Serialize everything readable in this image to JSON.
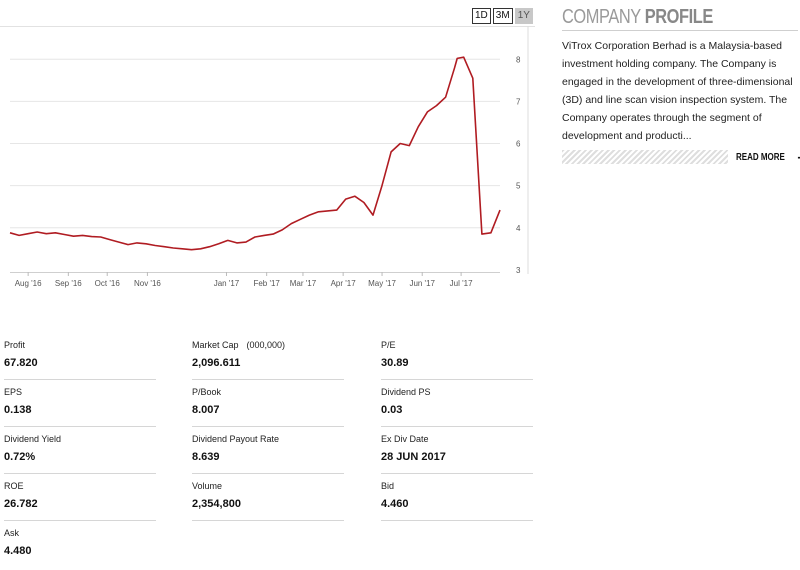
{
  "range_buttons": [
    {
      "label": "1D",
      "active": false
    },
    {
      "label": "3M",
      "active": false
    },
    {
      "label": "1Y",
      "active": true
    }
  ],
  "chart_data": {
    "type": "line",
    "x_tick_labels": [
      "Aug '16",
      "Sep '16",
      "Oct '16",
      "Nov '16",
      "Jan '17",
      "Feb '17",
      "Mar '17",
      "Apr '17",
      "May '17",
      "Jun '17",
      "Jul '17"
    ],
    "x_ticks": [
      "2016-08-01",
      "2016-09-01",
      "2016-10-01",
      "2016-11-01",
      "2017-01-01",
      "2017-02-01",
      "2017-03-01",
      "2017-04-01",
      "2017-05-01",
      "2017-06-01",
      "2017-07-01"
    ],
    "y_ticks": [
      3,
      4,
      5,
      6,
      7,
      8
    ],
    "ylim": [
      2.95,
      8.6
    ],
    "xlim": [
      "2016-07-18",
      "2017-07-31"
    ],
    "grid": true,
    "line_color": "#b01c22",
    "series": [
      {
        "x": [
          "2016-07-18",
          "2016-07-25",
          "2016-08-01",
          "2016-08-08",
          "2016-08-15",
          "2016-08-22",
          "2016-08-29",
          "2016-09-05",
          "2016-09-12",
          "2016-09-19",
          "2016-09-26",
          "2016-10-03",
          "2016-10-10",
          "2016-10-17",
          "2016-10-24",
          "2016-10-31",
          "2016-11-07",
          "2016-11-14",
          "2016-11-21",
          "2016-11-28",
          "2016-12-05",
          "2016-12-12",
          "2016-12-19",
          "2016-12-26",
          "2017-01-02",
          "2017-01-09",
          "2017-01-16",
          "2017-01-23",
          "2017-01-30",
          "2017-02-06",
          "2017-02-13",
          "2017-02-20",
          "2017-02-27",
          "2017-03-06",
          "2017-03-13",
          "2017-03-20",
          "2017-03-27",
          "2017-04-03",
          "2017-04-10",
          "2017-04-17",
          "2017-04-24",
          "2017-05-01",
          "2017-05-08",
          "2017-05-15",
          "2017-05-22",
          "2017-05-29",
          "2017-06-05",
          "2017-06-12",
          "2017-06-19",
          "2017-06-26",
          "2017-06-28",
          "2017-07-03",
          "2017-07-10",
          "2017-07-17",
          "2017-07-24",
          "2017-07-31"
        ],
        "y": [
          3.88,
          3.82,
          3.86,
          3.9,
          3.86,
          3.88,
          3.84,
          3.8,
          3.82,
          3.79,
          3.78,
          3.72,
          3.66,
          3.6,
          3.64,
          3.62,
          3.58,
          3.55,
          3.52,
          3.5,
          3.48,
          3.5,
          3.55,
          3.62,
          3.7,
          3.64,
          3.66,
          3.78,
          3.82,
          3.85,
          3.95,
          4.1,
          4.2,
          4.3,
          4.38,
          4.4,
          4.42,
          4.68,
          4.75,
          4.6,
          4.3,
          5.0,
          5.8,
          6.0,
          5.95,
          6.4,
          6.75,
          6.9,
          7.1,
          7.8,
          8.02,
          8.05,
          7.55,
          3.85,
          3.88,
          4.42
        ]
      }
    ]
  },
  "profile": {
    "title_light": "COMPANY",
    "title_bold": "PROFILE",
    "description": "ViTrox Corporation Berhad is a Malaysia-based investment holding company. The Company is engaged in the development of three-dimensional (3D) and line scan vision inspection system. The Company operates through the segment of development and producti...",
    "read_more": "READ MORE",
    "read_more_icon": "arrow-right-icon"
  },
  "stats": [
    {
      "label": "Profit",
      "value": "67.820"
    },
    {
      "label": "Market Cap",
      "unit": "(000,000)",
      "value": "2,096.611"
    },
    {
      "label": "P/E",
      "value": "30.89"
    },
    {
      "label": "EPS",
      "value": "0.138"
    },
    {
      "label": "P/Book",
      "value": "8.007"
    },
    {
      "label": "Dividend PS",
      "value": "0.03"
    },
    {
      "label": "Dividend Yield",
      "value": "0.72%"
    },
    {
      "label": "Dividend Payout Rate",
      "value": "8.639"
    },
    {
      "label": "Ex Div Date",
      "value": "28 JUN 2017"
    },
    {
      "label": "ROE",
      "value": "26.782"
    },
    {
      "label": "Volume",
      "value": "2,354,800"
    },
    {
      "label": "Bid",
      "value": "4.460"
    },
    {
      "label": "Ask",
      "value": "4.480"
    }
  ]
}
